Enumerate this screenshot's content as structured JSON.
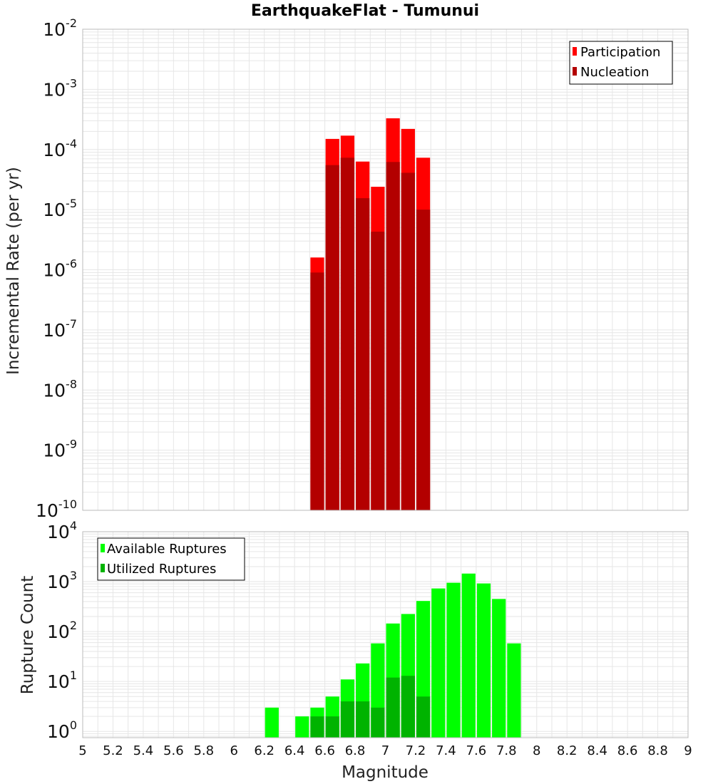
{
  "title": "EarthquakeFlat - Tumunui",
  "colors": {
    "participation": "#ff0000",
    "nucleation": "#b30000",
    "available": "#00ff00",
    "utilized": "#00b300",
    "grid": "#e6e6e6",
    "frame": "#bbbbbb"
  },
  "chart_data": [
    {
      "type": "bar",
      "ylabel": "Incremental Rate (per yr)",
      "yscale": "log",
      "ylim": [
        1e-10,
        0.01
      ],
      "xlim": [
        5,
        9
      ],
      "grid": true,
      "legend_position": "top-right",
      "bin_width": 0.1,
      "x": [
        6.55,
        6.65,
        6.75,
        6.85,
        6.95,
        7.05,
        7.15,
        7.25
      ],
      "series": [
        {
          "name": "Participation",
          "values": [
            1.6e-06,
            0.00015,
            0.00017,
            6.3e-05,
            2.4e-05,
            0.00033,
            0.00022,
            7.3e-05
          ]
        },
        {
          "name": "Nucleation",
          "values": [
            9e-07,
            5.5e-05,
            7.3e-05,
            1.55e-05,
            4.3e-06,
            6.2e-05,
            4.1e-05,
            1e-05
          ]
        }
      ]
    },
    {
      "type": "bar",
      "xlabel": "Magnitude",
      "ylabel": "Rupture Count",
      "yscale": "log",
      "ylim": [
        0.75,
        10000
      ],
      "xlim": [
        5,
        9
      ],
      "grid": true,
      "legend_position": "top-left",
      "bin_width": 0.1,
      "x": [
        6.25,
        6.45,
        6.55,
        6.65,
        6.75,
        6.85,
        6.95,
        7.05,
        7.15,
        7.25,
        7.35,
        7.45,
        7.55,
        7.65,
        7.75,
        7.85
      ],
      "series": [
        {
          "name": "Available Ruptures",
          "values": [
            3,
            2,
            3,
            5,
            11,
            23,
            58,
            145,
            225,
            410,
            730,
            950,
            1450,
            920,
            450,
            58
          ]
        },
        {
          "name": "Utilized Ruptures",
          "values": [
            0,
            0,
            2,
            2,
            4,
            4,
            3,
            12,
            13,
            5,
            0,
            0,
            0,
            0,
            0,
            0
          ]
        }
      ]
    }
  ],
  "x_ticks": [
    "5",
    "5.2",
    "5.4",
    "5.6",
    "5.8",
    "6",
    "6.2",
    "6.4",
    "6.6",
    "6.8",
    "7",
    "7.2",
    "7.4",
    "7.6",
    "7.8",
    "8",
    "8.2",
    "8.4",
    "8.6",
    "8.8",
    "9"
  ],
  "top_y_ticks": [
    {
      "base": "10",
      "exp": "-10"
    },
    {
      "base": "10",
      "exp": "-9"
    },
    {
      "base": "10",
      "exp": "-8"
    },
    {
      "base": "10",
      "exp": "-7"
    },
    {
      "base": "10",
      "exp": "-6"
    },
    {
      "base": "10",
      "exp": "-5"
    },
    {
      "base": "10",
      "exp": "-4"
    },
    {
      "base": "10",
      "exp": "-3"
    },
    {
      "base": "10",
      "exp": "-2"
    }
  ],
  "bottom_y_ticks": [
    {
      "base": "10",
      "exp": "0"
    },
    {
      "base": "10",
      "exp": "1"
    },
    {
      "base": "10",
      "exp": "2"
    },
    {
      "base": "10",
      "exp": "3"
    },
    {
      "base": "10",
      "exp": "4"
    }
  ]
}
